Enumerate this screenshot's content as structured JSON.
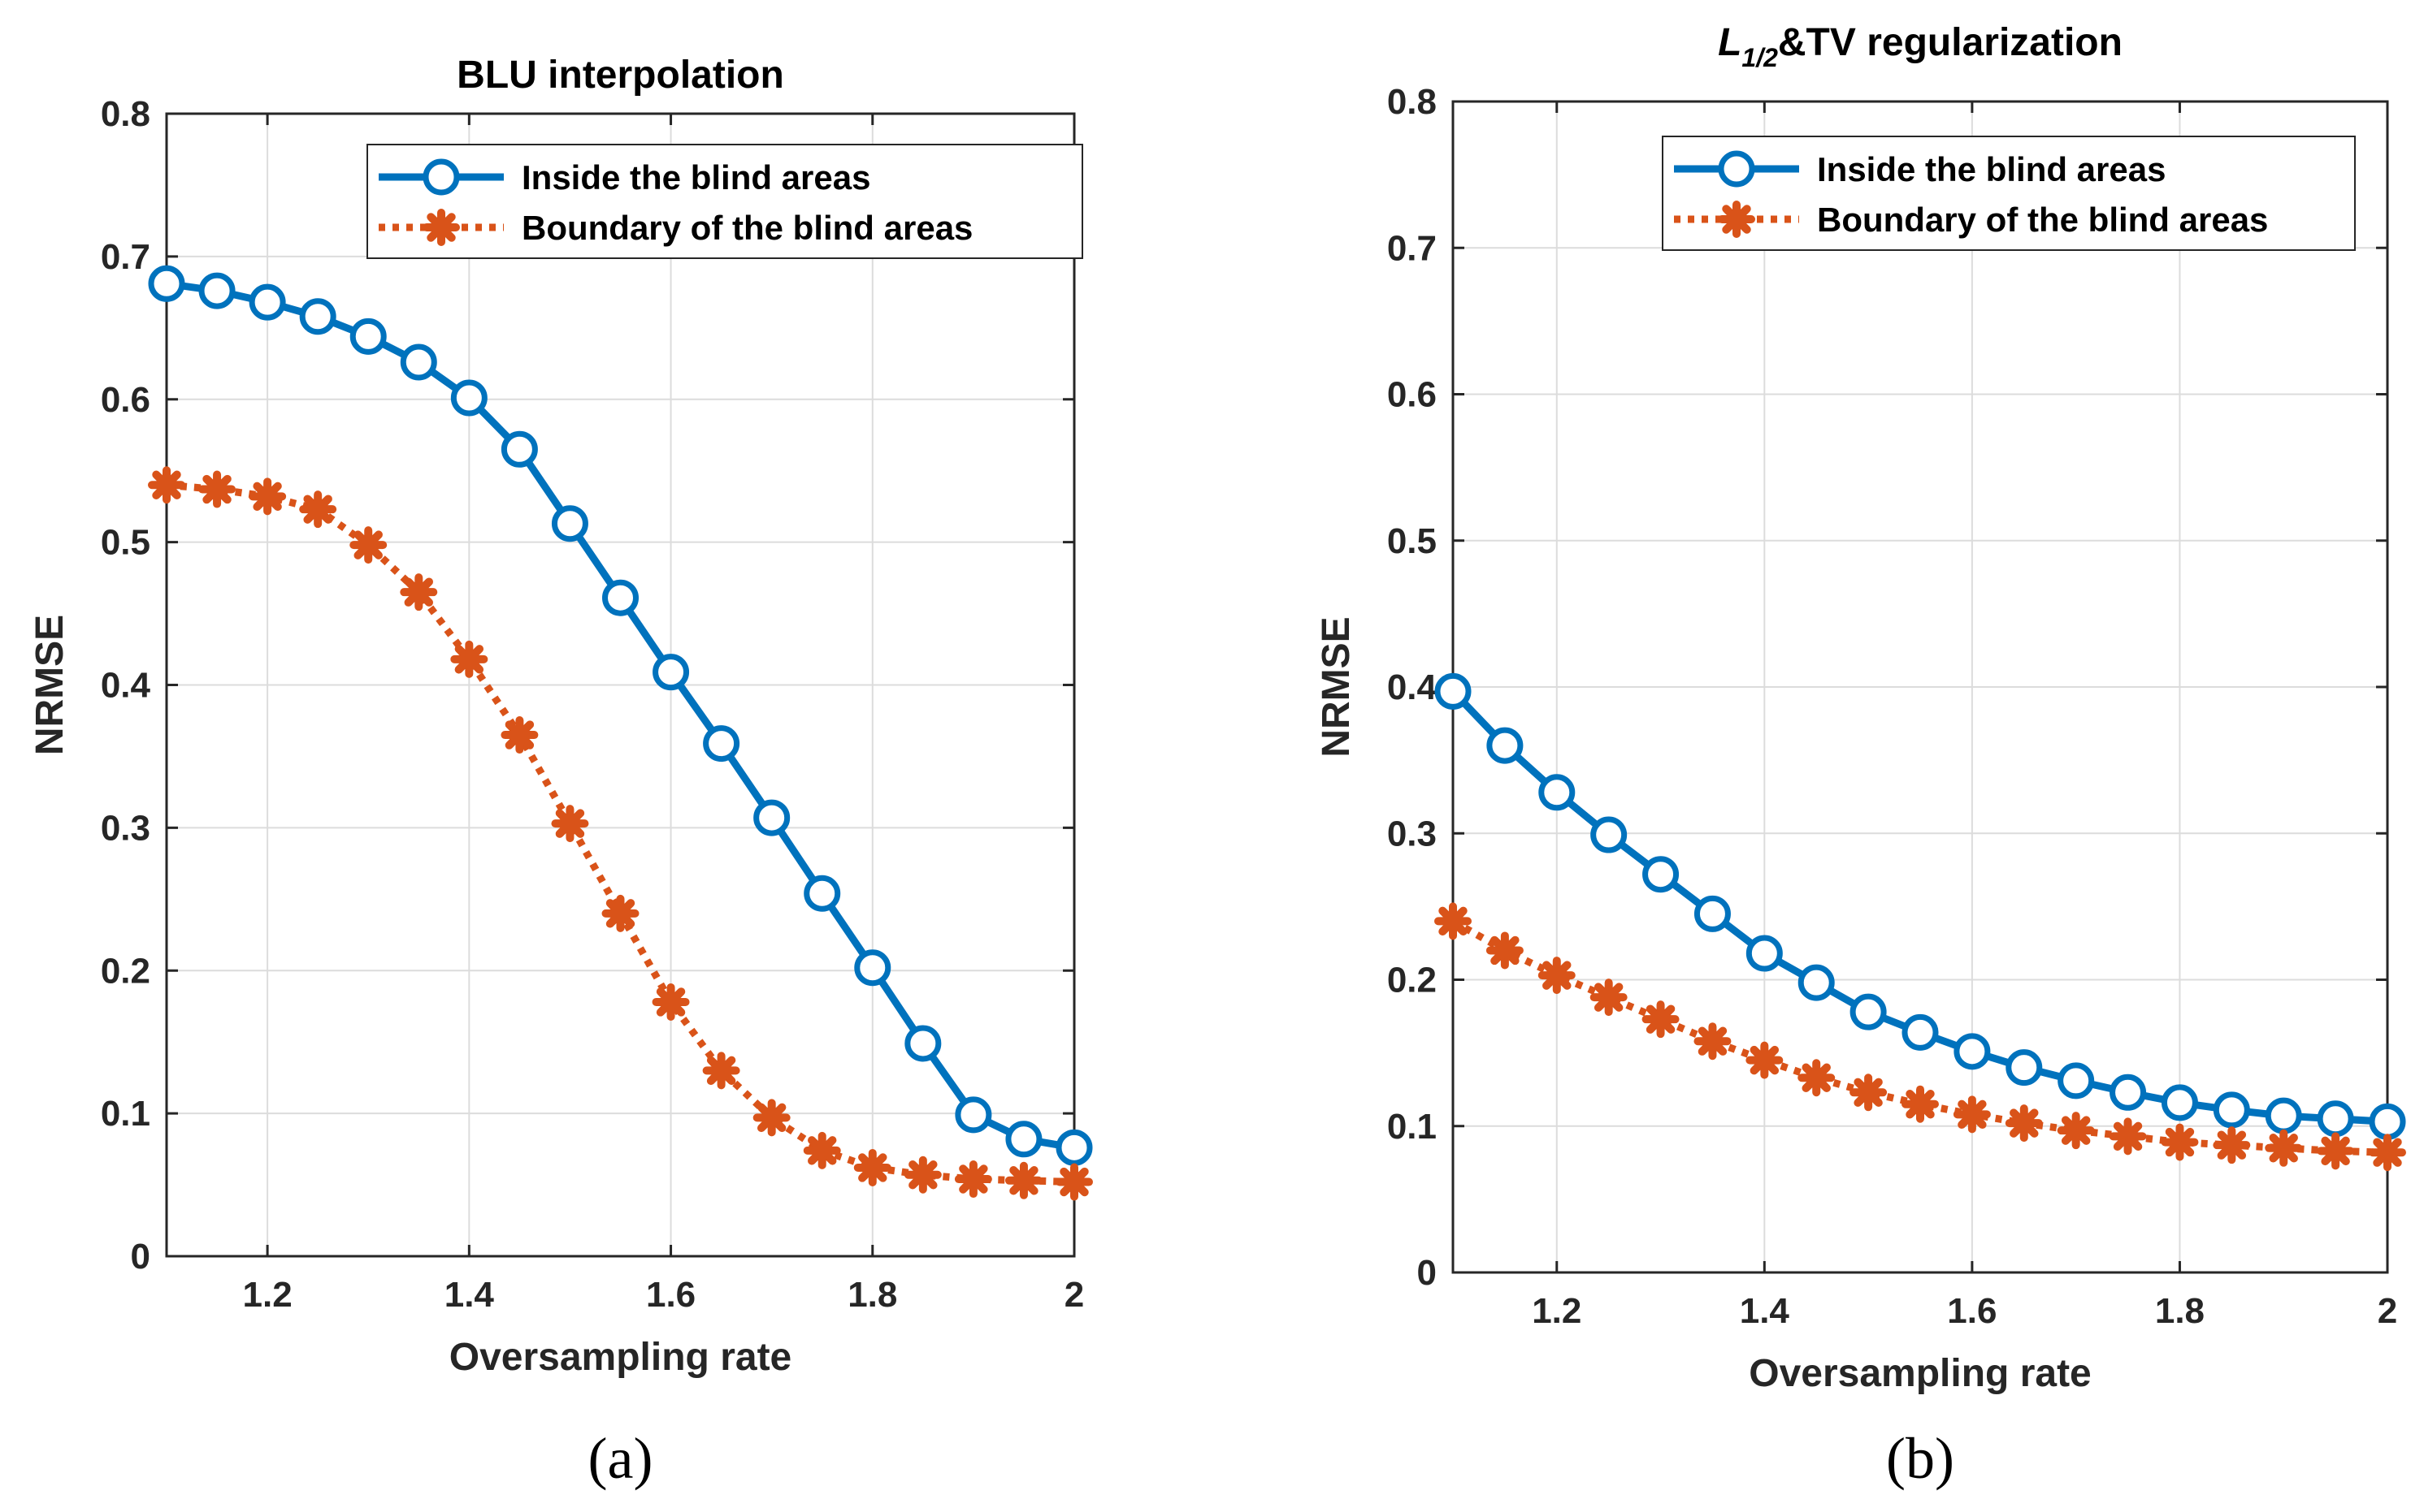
{
  "chart_data": [
    {
      "type": "line",
      "title": "BLU interpolation",
      "xlabel": "Oversampling rate",
      "ylabel": "NRMSE",
      "xlim": [
        1.1,
        2.0
      ],
      "ylim": [
        0,
        0.8
      ],
      "xticks": [
        1.2,
        1.4,
        1.6,
        1.8,
        2.0
      ],
      "xtick_labels": [
        "1.2",
        "1.4",
        "1.6",
        "1.8",
        "2"
      ],
      "yticks": [
        0,
        0.1,
        0.2,
        0.3,
        0.4,
        0.5,
        0.6,
        0.7,
        0.8
      ],
      "ytick_labels": [
        "0",
        "0.1",
        "0.2",
        "0.3",
        "0.4",
        "0.5",
        "0.6",
        "0.7",
        "0.8"
      ],
      "grid": true,
      "legend_position": "top-right",
      "panel_label": "(a)",
      "x": [
        1.1,
        1.15,
        1.2,
        1.25,
        1.3,
        1.35,
        1.4,
        1.45,
        1.5,
        1.55,
        1.6,
        1.65,
        1.7,
        1.75,
        1.8,
        1.85,
        1.9,
        1.95,
        2.0
      ],
      "series": [
        {
          "name": "Inside the blind areas",
          "color": "#0072bd",
          "line_style": "solid",
          "marker": "circle",
          "values": [
            0.681,
            0.676,
            0.668,
            0.658,
            0.644,
            0.626,
            0.601,
            0.565,
            0.513,
            0.461,
            0.409,
            0.359,
            0.307,
            0.254,
            0.202,
            0.149,
            0.099,
            0.082,
            0.076
          ]
        },
        {
          "name": "Boundary of the blind areas",
          "color": "#d95319",
          "line_style": "dotted",
          "marker": "asterisk",
          "values": [
            0.54,
            0.537,
            0.532,
            0.523,
            0.498,
            0.465,
            0.418,
            0.365,
            0.303,
            0.24,
            0.178,
            0.13,
            0.097,
            0.074,
            0.062,
            0.057,
            0.054,
            0.053,
            0.052
          ]
        }
      ]
    },
    {
      "type": "line",
      "title": "L",
      "title_subscript": "1/2",
      "title_suffix": "&TV regularization",
      "xlabel": "Oversampling rate",
      "ylabel": "NRMSE",
      "xlim": [
        1.1,
        2.0
      ],
      "ylim": [
        0,
        0.8
      ],
      "xticks": [
        1.2,
        1.4,
        1.6,
        1.8,
        2.0
      ],
      "xtick_labels": [
        "1.2",
        "1.4",
        "1.6",
        "1.8",
        "2"
      ],
      "yticks": [
        0,
        0.1,
        0.2,
        0.3,
        0.4,
        0.5,
        0.6,
        0.7,
        0.8
      ],
      "ytick_labels": [
        "0",
        "0.1",
        "0.2",
        "0.3",
        "0.4",
        "0.5",
        "0.6",
        "0.7",
        "0.8"
      ],
      "grid": true,
      "legend_position": "top-right",
      "panel_label": "(b)",
      "x": [
        1.1,
        1.15,
        1.2,
        1.25,
        1.3,
        1.35,
        1.4,
        1.45,
        1.5,
        1.55,
        1.6,
        1.65,
        1.7,
        1.75,
        1.8,
        1.85,
        1.9,
        1.95,
        2.0
      ],
      "series": [
        {
          "name": "Inside the blind areas",
          "color": "#0072bd",
          "line_style": "solid",
          "marker": "circle",
          "values": [
            0.397,
            0.36,
            0.328,
            0.299,
            0.272,
            0.245,
            0.218,
            0.198,
            0.178,
            0.164,
            0.151,
            0.14,
            0.131,
            0.123,
            0.116,
            0.111,
            0.107,
            0.105,
            0.103
          ]
        },
        {
          "name": "Boundary of the blind areas",
          "color": "#d95319",
          "line_style": "dotted",
          "marker": "asterisk",
          "values": [
            0.24,
            0.22,
            0.203,
            0.188,
            0.173,
            0.158,
            0.145,
            0.133,
            0.123,
            0.115,
            0.108,
            0.102,
            0.097,
            0.093,
            0.089,
            0.087,
            0.085,
            0.083,
            0.082
          ]
        }
      ]
    }
  ]
}
